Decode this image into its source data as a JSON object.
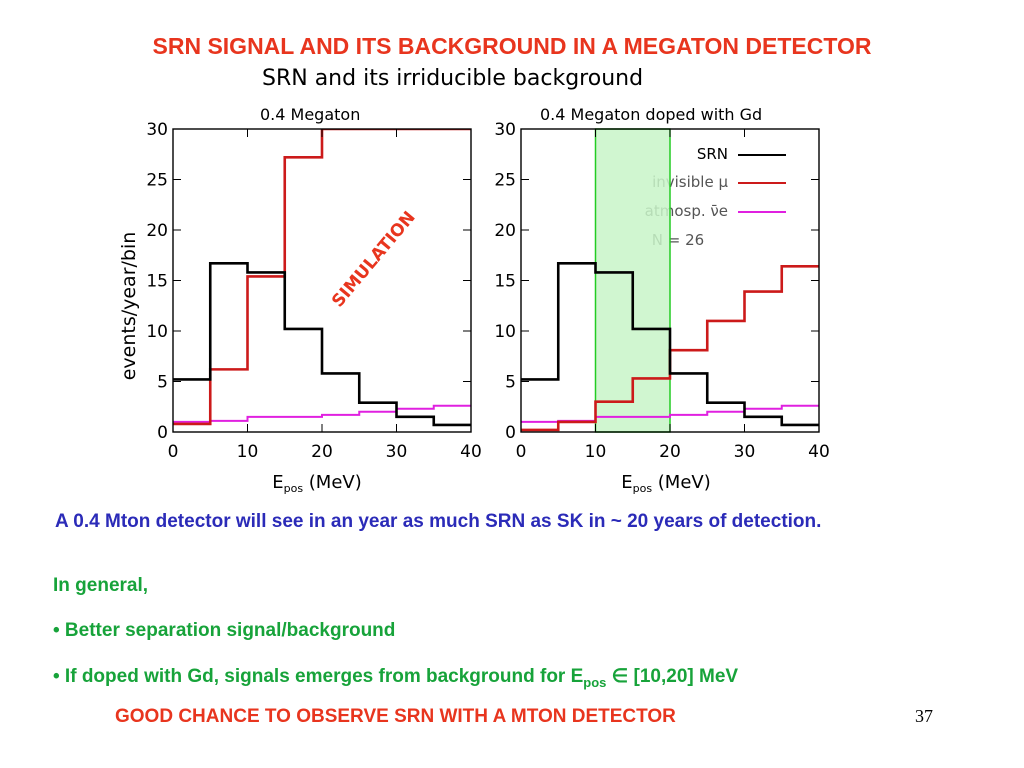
{
  "slide": {
    "title": "SRN SIGNAL AND ITS BACKGROUND IN A MEGATON DETECTOR",
    "paragraph": "A 0.4 Mton detector will see in an year as much SRN as SK in ~ 20 years of detection.",
    "in_general": "In general,",
    "bullet_1": "• Better separation signal/background",
    "bullet_2_prefix": "• If doped with Gd, signals emerges from background for E",
    "bullet_2_sub": "pos",
    "bullet_2_suffix": " ∈ [10,20] MeV",
    "conclusion": "GOOD CHANCE TO OBSERVE SRN WITH A MTON DETECTOR",
    "page_number": "37"
  },
  "chart_data": [
    {
      "type": "histogram",
      "figure_title": "SRN and its irriducible background",
      "title": "0.4 Megaton",
      "xlabel": "E",
      "xlabel_sub": "pos",
      "xlabel_unit": " (MeV)",
      "ylabel": "events/year/bin",
      "xlim": [
        0,
        40
      ],
      "ylim": [
        0,
        30
      ],
      "xticks": [
        "0",
        "10",
        "20",
        "30",
        "40"
      ],
      "yticks": [
        "0",
        "5",
        "10",
        "15",
        "20",
        "25",
        "30"
      ],
      "annotation": "SIMULATION",
      "bin_edges": [
        0,
        5,
        10,
        15,
        20,
        25,
        30,
        35,
        40
      ],
      "series": [
        {
          "name": "SRN",
          "color": "#000000",
          "values": [
            5.2,
            16.7,
            15.8,
            10.2,
            5.8,
            2.9,
            1.5,
            0.7
          ]
        },
        {
          "name": "invisible μ",
          "color": "#cc1a1a",
          "values": [
            0.8,
            6.2,
            15.4,
            27.2,
            30.0,
            30.0,
            30.0,
            30.0
          ]
        },
        {
          "name": "atmosp. ν̄e",
          "color": "#e020e0",
          "values": [
            1.0,
            1.1,
            1.5,
            1.5,
            1.7,
            2.0,
            2.3,
            2.6
          ]
        }
      ]
    },
    {
      "type": "histogram",
      "title": "0.4 Megaton doped with Gd",
      "xlabel": "E",
      "xlabel_sub": "pos",
      "xlabel_unit": " (MeV)",
      "xlim": [
        0,
        40
      ],
      "ylim": [
        0,
        30
      ],
      "xticks": [
        "0",
        "10",
        "20",
        "30",
        "40"
      ],
      "yticks": [
        "0",
        "5",
        "10",
        "15",
        "20",
        "25",
        "30"
      ],
      "highlight_range": [
        10,
        20
      ],
      "highlight_color": "#c8f5c8",
      "bin_edges": [
        0,
        5,
        10,
        15,
        20,
        25,
        30,
        35,
        40
      ],
      "series": [
        {
          "name": "SRN",
          "color": "#000000",
          "values": [
            5.2,
            16.7,
            15.8,
            10.2,
            5.8,
            2.9,
            1.5,
            0.7
          ]
        },
        {
          "name": "invisible μ",
          "color": "#cc1a1a",
          "values": [
            0.2,
            1.0,
            3.0,
            5.3,
            8.1,
            11.0,
            13.9,
            16.4
          ]
        },
        {
          "name": "atmosp. ν̄e",
          "color": "#e020e0",
          "values": [
            1.0,
            1.1,
            1.5,
            1.5,
            1.7,
            2.0,
            2.3,
            2.6
          ]
        }
      ],
      "legend_placement": "top-right",
      "legend_note": "N = 26"
    }
  ]
}
